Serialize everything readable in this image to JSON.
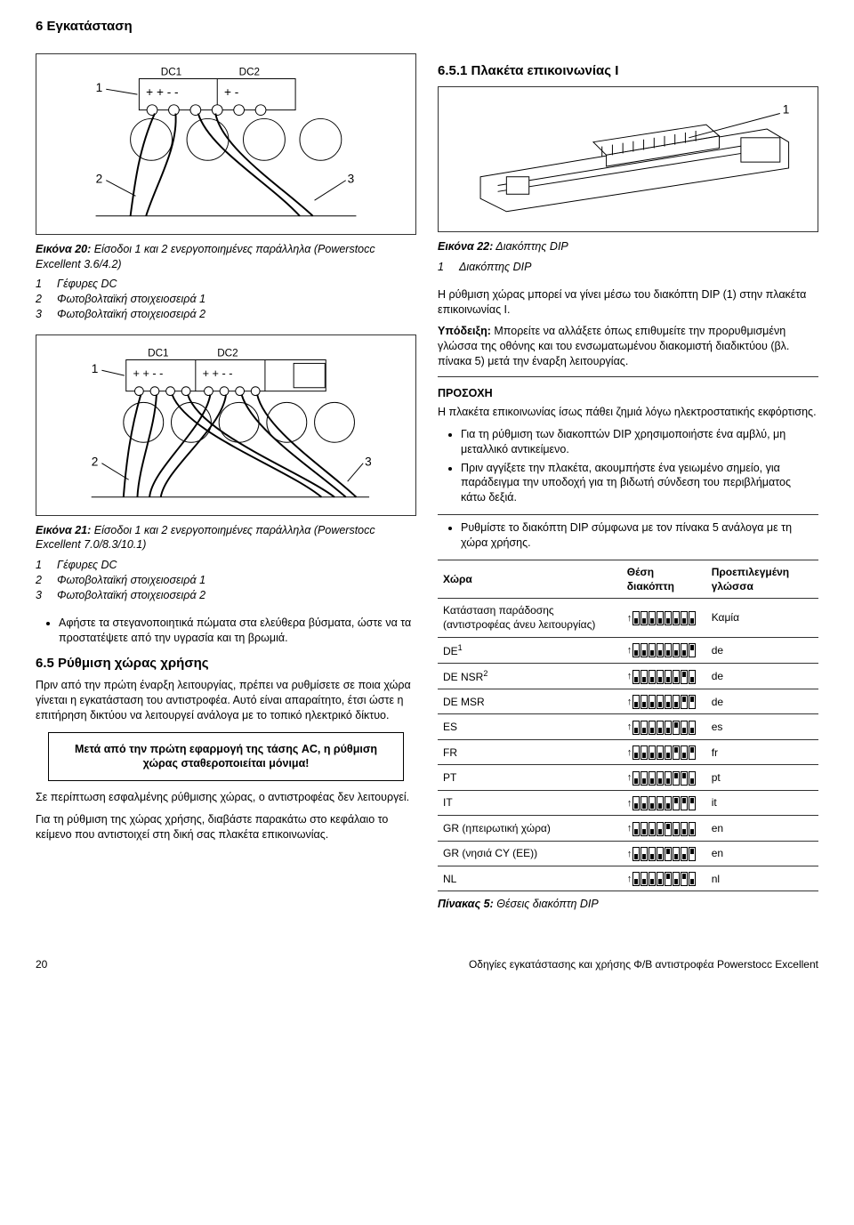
{
  "header": "6 Εγκατάσταση",
  "section651": "6.5.1   Πλακέτα επικοινωνίας I",
  "fig20": {
    "caption_label": "Εικόνα 20:",
    "caption_text": " Είσοδοι 1 και 2 ενεργοποιημένες παράλληλα (Powerstocc Excellent 3.6/4.2)",
    "legend": [
      {
        "n": "1",
        "t": "Γέφυρες DC"
      },
      {
        "n": "2",
        "t": "Φωτοβολταϊκή στοιχειοσειρά 1"
      },
      {
        "n": "3",
        "t": "Φωτοβολταϊκή στοιχειοσειρά 2"
      }
    ],
    "labels": {
      "dc1": "DC1",
      "dc2": "DC2",
      "n1": "1",
      "n2": "2",
      "n3": "3"
    }
  },
  "fig21": {
    "caption_label": "Εικόνα 21:",
    "caption_text": " Είσοδοι 1 και 2 ενεργοποιημένες παράλληλα (Powerstocc Excellent 7.0/8.3/10.1)",
    "legend": [
      {
        "n": "1",
        "t": "Γέφυρες DC"
      },
      {
        "n": "2",
        "t": "Φωτοβολταϊκή στοιχειοσειρά 1"
      },
      {
        "n": "3",
        "t": "Φωτοβολταϊκή στοιχειοσειρά 2"
      }
    ],
    "labels": {
      "dc1": "DC1",
      "dc2": "DC2",
      "n1": "1",
      "n2": "2",
      "n3": "3"
    }
  },
  "bullet_left": "Αφήστε τα στεγανοποιητικά πώματα στα ελεύθερα βύσματα, ώστε να τα προστατέψετε από την υγρασία και τη βρωμιά.",
  "section65": "6.5   Ρύθμιση χώρας χρήσης",
  "p65_a": "Πριν από την πρώτη έναρξη λειτουργίας, πρέπει να ρυθμίσετε σε ποια χώρα γίνεται η εγκατάσταση του αντιστροφέα. Αυτό είναι απαραίτητο, έτσι ώστε η επιτήρηση δικτύου να λειτουργεί ανάλογα με το τοπικό ηλεκτρικό δίκτυο.",
  "callout": "Μετά από την πρώτη εφαρμογή της τάσης AC, η ρύθμιση χώρας σταθεροποιείται μόνιμα!",
  "p65_b": "Σε περίπτωση εσφαλμένης ρύθμισης χώρας, ο αντιστροφέας δεν λειτουργεί.",
  "p65_c": "Για τη ρύθμιση της χώρας χρήσης, διαβάστε παρακάτω στο κεφάλαιο το κείμενο που αντιστοιχεί στη δική σας πλακέτα επικοινωνίας.",
  "fig22": {
    "caption_label": "Εικόνα 22:",
    "caption_text": " Διακόπτης DIP",
    "legend": [
      {
        "n": "1",
        "t": "Διακόπτης DIP"
      }
    ],
    "n1": "1"
  },
  "right_p1": "Η ρύθμιση χώρας μπορεί να γίνει μέσω του διακόπτη DIP (1) στην πλακέτα επικοινωνίας I.",
  "right_hint_label": "Υπόδειξη:",
  "right_hint": " Μπορείτε να αλλάξετε όπως επιθυμείτε την προρυθμισμένη γλώσσα της οθόνης και του ενσωματωμένου διακομιστή διαδικτύου (βλ. πίνακα 5) μετά την έναρξη λειτουργίας.",
  "notice_title": "ΠΡΟΣΟΧΗ",
  "notice_p": "Η πλακέτα επικοινωνίας ίσως πάθει ζημιά λόγω ηλεκτροστατικής εκφόρτισης.",
  "notice_bullets": [
    "Για τη ρύθμιση των διακοπτών DIP χρησιμοποιήστε ένα αμβλύ, μη μεταλλικό αντικείμενο.",
    "Πριν αγγίξετε την πλακέτα, ακουμπήστε ένα γειωμένο σημείο, για παράδειγμα την υποδοχή για τη βιδωτή σύνδεση του περιβλήματος κάτω δεξιά."
  ],
  "set_bullet": "Ρυθμίστε το διακόπτη DIP σύμφωνα με τον πίνακα 5 ανάλογα με τη χώρα χρήσης.",
  "table": {
    "headers": [
      "Χώρα",
      "Θέση διακόπτη",
      "Προεπιλεγμένη γλώσσα"
    ],
    "rows": [
      {
        "country": "Κατάσταση παράδοσης (αντιστροφέας άνευ λειτουργίας)",
        "dip": [
          0,
          0,
          0,
          0,
          0,
          0,
          0,
          0
        ],
        "lang": "Καμία"
      },
      {
        "country": "DE",
        "sup": "1",
        "dip": [
          0,
          0,
          0,
          0,
          0,
          0,
          0,
          1
        ],
        "lang": "de"
      },
      {
        "country": "DE NSR",
        "sup": "2",
        "dip": [
          0,
          0,
          0,
          0,
          0,
          0,
          1,
          0
        ],
        "lang": "de"
      },
      {
        "country": "DE MSR",
        "dip": [
          0,
          0,
          0,
          0,
          0,
          0,
          1,
          1
        ],
        "lang": "de"
      },
      {
        "country": "ES",
        "dip": [
          0,
          0,
          0,
          0,
          0,
          1,
          0,
          0
        ],
        "lang": "es"
      },
      {
        "country": "FR",
        "dip": [
          0,
          0,
          0,
          0,
          0,
          1,
          0,
          1
        ],
        "lang": "fr"
      },
      {
        "country": "PT",
        "dip": [
          0,
          0,
          0,
          0,
          0,
          1,
          1,
          0
        ],
        "lang": "pt"
      },
      {
        "country": "IT",
        "dip": [
          0,
          0,
          0,
          0,
          0,
          1,
          1,
          1
        ],
        "lang": "it"
      },
      {
        "country": "GR (ηπειρωτική χώρα)",
        "dip": [
          0,
          0,
          0,
          0,
          1,
          0,
          0,
          0
        ],
        "lang": "en"
      },
      {
        "country": "GR (νησιά CY (EE))",
        "dip": [
          0,
          0,
          0,
          0,
          1,
          0,
          0,
          1
        ],
        "lang": "en"
      },
      {
        "country": "NL",
        "dip": [
          0,
          0,
          0,
          0,
          1,
          0,
          1,
          0
        ],
        "lang": "nl"
      }
    ],
    "caption_label": "Πίνακας 5:",
    "caption_text": " Θέσεις διακόπτη DIP"
  },
  "footer": {
    "page": "20",
    "text": "Οδηγίες εγκατάστασης και χρήσης Φ/Β αντιστροφέα Powerstocc Excellent"
  }
}
